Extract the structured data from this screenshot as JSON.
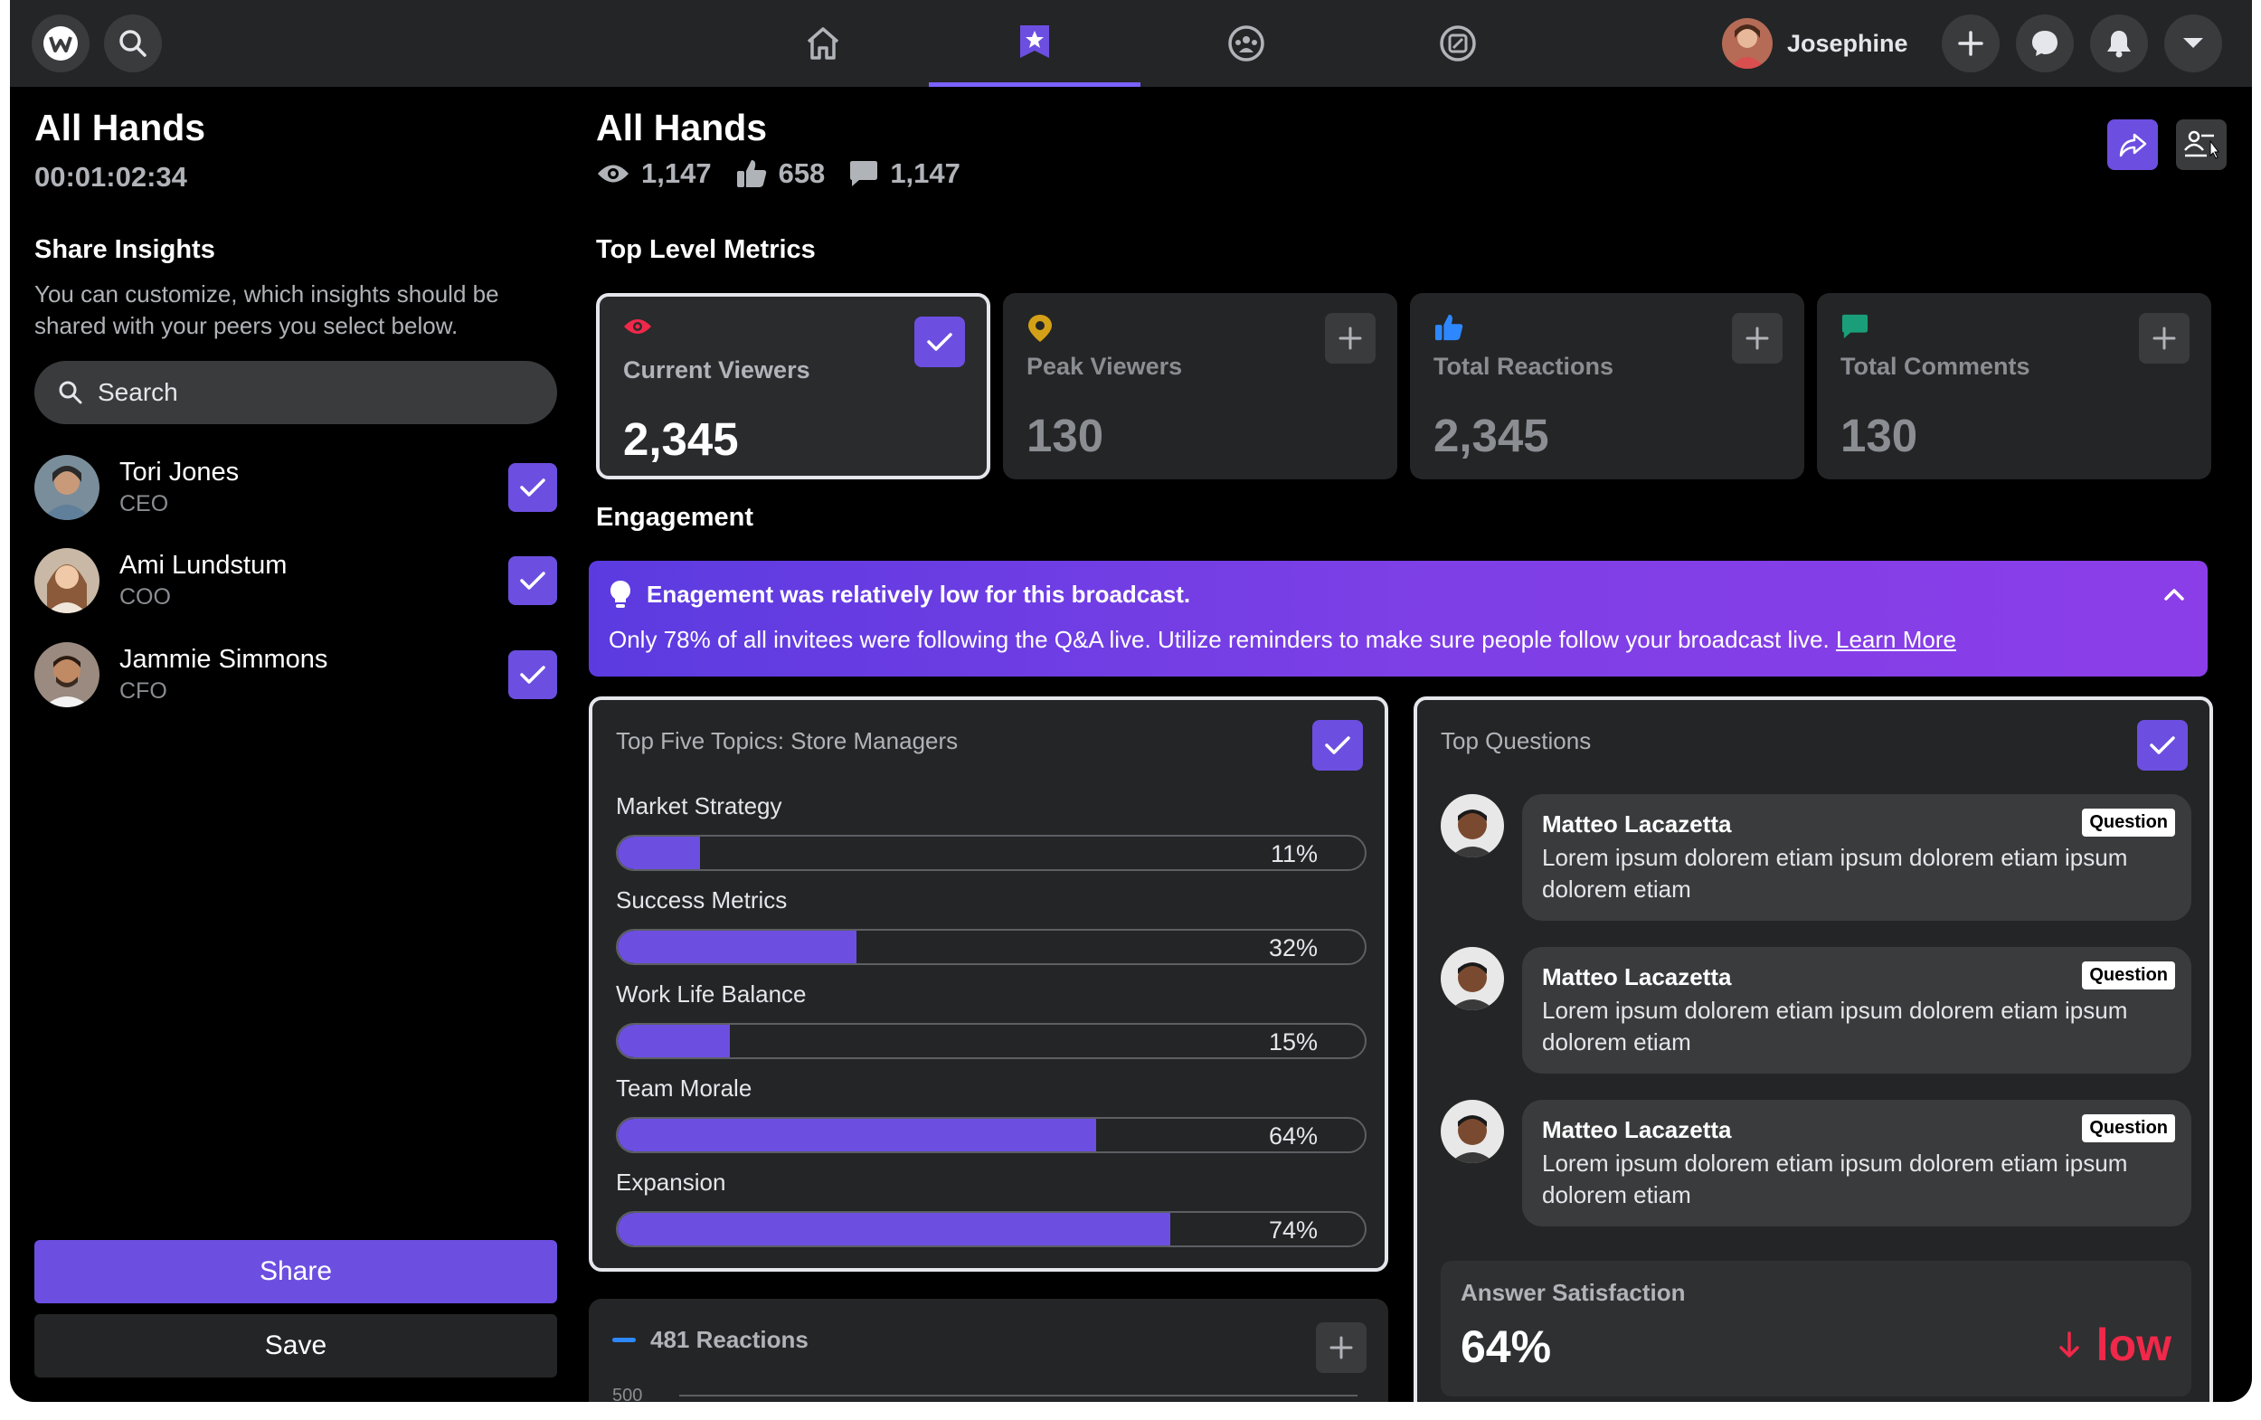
{
  "nav": {
    "user": {
      "name": "Josephine"
    },
    "tabs": [
      {
        "name": "home",
        "icon": "home-icon",
        "active": false
      },
      {
        "name": "broadcasts",
        "icon": "badge-icon",
        "active": true
      },
      {
        "name": "groups",
        "icon": "group-icon",
        "active": false
      },
      {
        "name": "gaming",
        "icon": "gaming-icon",
        "active": false
      }
    ]
  },
  "sidebar": {
    "title": "All Hands",
    "timer": "00:01:02:34",
    "share_title": "Share Insights",
    "share_desc": "You can customize, which insights should be shared with your peers you select below.",
    "search_placeholder": "Search",
    "peers": [
      {
        "name": "Tori Jones",
        "role": "CEO",
        "checked": true
      },
      {
        "name": "Ami Lundstum",
        "role": "COO",
        "checked": true
      },
      {
        "name": "Jammie Simmons",
        "role": "CFO",
        "checked": true
      }
    ],
    "share_label": "Share",
    "save_label": "Save"
  },
  "main": {
    "title": "All Hands",
    "stats": {
      "views": "1,147",
      "likes": "658",
      "comments": "1,147"
    },
    "metrics_title": "Top Level Metrics",
    "metrics": [
      {
        "label": "Current Viewers",
        "value": "2,345",
        "selected": true,
        "icon_color": "#f02849"
      },
      {
        "label": "Peak Viewers",
        "value": "130",
        "selected": false,
        "icon_color": "#d4a017"
      },
      {
        "label": "Total Reactions",
        "value": "2,345",
        "selected": false,
        "icon_color": "#2d88ff"
      },
      {
        "label": "Total Comments",
        "value": "130",
        "selected": false,
        "icon_color": "#1a9e7a"
      }
    ],
    "engagement_title": "Engagement",
    "banner": {
      "title": "Enagement was relatively low for this broadcast.",
      "body": "Only 78% of all invitees were following the Q&A live. Utilize reminders to make sure people follow your broadcast live.",
      "link": "Learn More"
    },
    "topics_panel": {
      "title": "Top Five Topics: Store Managers",
      "topics": [
        {
          "label": "Market Strategy",
          "pct_text": "11%",
          "value": 11
        },
        {
          "label": "Success Metrics",
          "pct_text": "32%",
          "value": 32
        },
        {
          "label": "Work Life Balance",
          "pct_text": "15%",
          "value": 15
        },
        {
          "label": "Team Morale",
          "pct_text": "64%",
          "value": 64
        },
        {
          "label": "Expansion",
          "pct_text": "74%",
          "value": 74
        }
      ]
    },
    "questions_panel": {
      "title": "Top Questions",
      "questions": [
        {
          "name": "Matteo Lacazetta",
          "tag": "Question",
          "text": "Lorem ipsum dolorem etiam ipsum dolorem etiam ipsum dolorem etiam"
        },
        {
          "name": "Matteo Lacazetta",
          "tag": "Question",
          "text": "Lorem ipsum dolorem etiam ipsum dolorem etiam ipsum dolorem etiam"
        },
        {
          "name": "Matteo Lacazetta",
          "tag": "Question",
          "text": "Lorem ipsum dolorem etiam ipsum dolorem etiam ipsum dolorem etiam"
        }
      ],
      "satisfaction": {
        "label": "Answer Satisfaction",
        "value": "64%",
        "trend": "low"
      }
    },
    "reactions_panel": {
      "title": "481 Reactions",
      "axis_label": "500"
    }
  },
  "colors": {
    "accent": "#6c4fe0",
    "low": "#f02849"
  }
}
